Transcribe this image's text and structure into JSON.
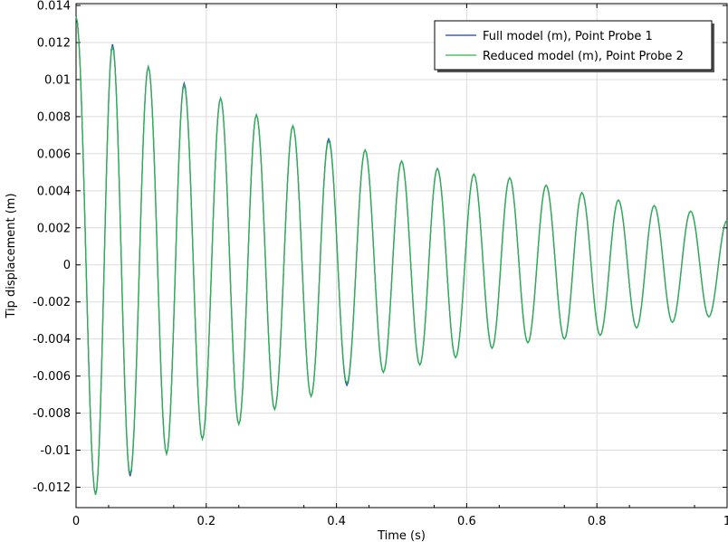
{
  "chart_data": {
    "type": "line",
    "title": "",
    "xlabel": "Time (s)",
    "ylabel": "Tip displacement (m)",
    "xlim": [
      0,
      1
    ],
    "ylim": [
      -0.0131,
      0.0141
    ],
    "grid": true,
    "legend_position": "top-right",
    "x_ticks": [
      0,
      0.2,
      0.4,
      0.6,
      0.8,
      1
    ],
    "x_tick_labels": [
      "0",
      "0.2",
      "0.4",
      "0.6",
      "0.8",
      "1"
    ],
    "y_ticks": [
      -0.012,
      -0.01,
      -0.008,
      -0.006,
      -0.004,
      -0.002,
      0,
      0.002,
      0.004,
      0.006,
      0.008,
      0.01,
      0.012,
      0.014
    ],
    "y_tick_labels": [
      "-0.012",
      "-0.01",
      "-0.008",
      "-0.006",
      "-0.004",
      "-0.002",
      "0",
      "0.002",
      "0.004",
      "0.006",
      "0.008",
      "0.01",
      "0.012",
      "0.014"
    ],
    "x": [
      0,
      0.03,
      0.056,
      0.083,
      0.111,
      0.139,
      0.166,
      0.194,
      0.222,
      0.25,
      0.277,
      0.305,
      0.333,
      0.361,
      0.388,
      0.416,
      0.444,
      0.472,
      0.5,
      0.528,
      0.555,
      0.583,
      0.611,
      0.639,
      0.666,
      0.694,
      0.722,
      0.75,
      0.777,
      0.805,
      0.833,
      0.861,
      0.888,
      0.916,
      0.944,
      0.972,
      1.0
    ],
    "series": [
      {
        "name": "Full model (m), Point Probe 1",
        "color": "#1f3fbf",
        "values": [
          0.0134,
          -0.0124,
          0.0119,
          -0.0114,
          0.0107,
          -0.0102,
          0.0098,
          -0.0094,
          0.009,
          -0.0086,
          0.0081,
          -0.0078,
          0.0075,
          -0.0071,
          0.0068,
          -0.0065,
          0.0062,
          -0.0058,
          0.0056,
          -0.0054,
          0.0052,
          -0.005,
          0.0049,
          -0.0045,
          0.0047,
          -0.0042,
          0.0043,
          -0.004,
          0.0039,
          -0.0038,
          0.0035,
          -0.0034,
          0.0032,
          -0.0031,
          0.0029,
          -0.0028,
          0.0024
        ]
      },
      {
        "name": "Reduced model (m), Point Probe 2",
        "color": "#2db34a",
        "values": [
          0.0134,
          -0.0124,
          0.0118,
          -0.0113,
          0.0107,
          -0.0102,
          0.0097,
          -0.0094,
          0.009,
          -0.0086,
          0.0081,
          -0.0078,
          0.0075,
          -0.0071,
          0.0067,
          -0.0064,
          0.0062,
          -0.0058,
          0.0056,
          -0.0054,
          0.0052,
          -0.005,
          0.0049,
          -0.0045,
          0.0047,
          -0.0042,
          0.0043,
          -0.004,
          0.0039,
          -0.0038,
          0.0035,
          -0.0034,
          0.0032,
          -0.0031,
          0.0029,
          -0.0028,
          0.0024
        ]
      }
    ]
  }
}
